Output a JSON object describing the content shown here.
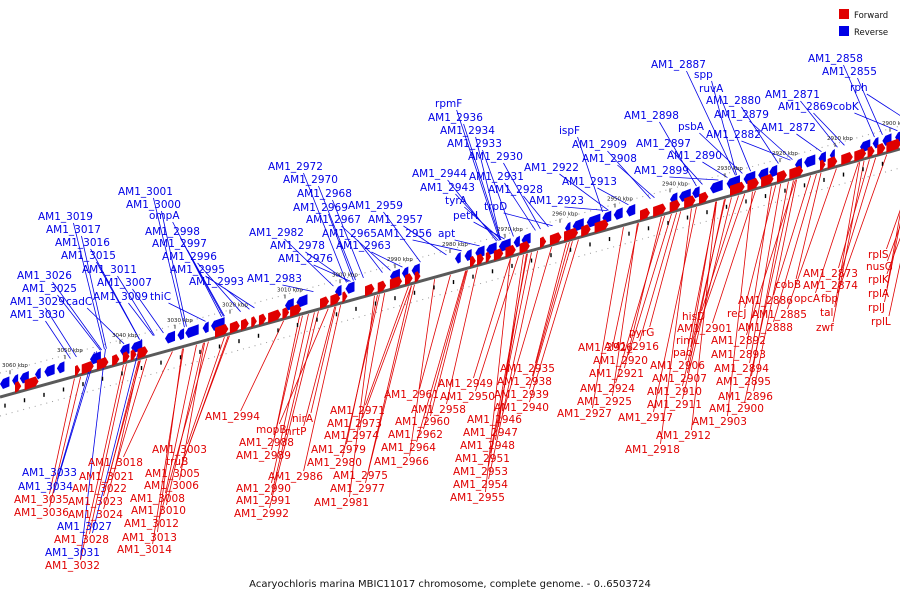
{
  "caption": "Acaryochloris marina MBIC11017 chromosome, complete genome. - 0..6503724",
  "legend": [
    {
      "label": "Forward",
      "color": "#e00000"
    },
    {
      "label": "Reverse",
      "color": "#0000e6"
    }
  ],
  "colors": {
    "forward": "#e00000",
    "reverse": "#0000e6",
    "backbone": "#5a5a5a",
    "ruler": "#888888"
  },
  "scale": {
    "start": 3060,
    "end": 2900,
    "step": 10,
    "unit": "kbp"
  },
  "reverse_labels": [
    "AM1_3030",
    "AM1_3029",
    "cadC",
    "AM1_3025",
    "AM1_3026",
    "AM1_3009",
    "AM1_3007",
    "AM1_3011",
    "AM1_3015",
    "AM1_3016",
    "AM1_3017",
    "AM1_3019",
    "thiC",
    "AM1_2998",
    "ompA",
    "AM1_3000",
    "AM1_3001",
    "AM1_2997",
    "AM1_2996",
    "AM1_2995",
    "AM1_2993",
    "AM1_2983",
    "AM1_2976",
    "AM1_2978",
    "AM1_2982",
    "AM1_2969",
    "AM1_2968",
    "AM1_2970",
    "AM1_2972",
    "AM1_2967",
    "AM1_2965",
    "AM1_2963",
    "AM1_2959",
    "AM1_2957",
    "AM1_2956",
    "apt",
    "petH",
    "tyrA",
    "AM1_2943",
    "AM1_2944",
    "AM1_2934",
    "AM1_2933",
    "AM1_2936",
    "rpmF",
    "trpD",
    "AM1_2928",
    "AM1_2931",
    "AM1_2930",
    "AM1_2923",
    "AM1_2922",
    "ispF",
    "AM1_2913",
    "AM1_2908",
    "AM1_2909",
    "AM1_2899",
    "AM1_2890",
    "AM1_2897",
    "AM1_2898",
    "psbA",
    "AM1_2887",
    "spp",
    "ruvA",
    "AM1_2880",
    "AM1_2879",
    "AM1_2882",
    "AM1_2872",
    "AM1_2869",
    "AM1_2871",
    "cobK",
    "rph",
    "AM1_2855",
    "AM1_2858",
    "AM1_3033",
    "AM1_3034",
    "AM1_3027",
    "AM1_3031"
  ],
  "forward_labels": [
    "AM1_3035",
    "AM1_3036",
    "AM1_3028",
    "AM1_3032",
    "AM1_3018",
    "AM1_3021",
    "AM1_3022",
    "AM1_3023",
    "AM1_3024",
    "AM1_3012",
    "AM1_3013",
    "AM1_3014",
    "AM1_3003",
    "truB",
    "AM1_3005",
    "AM1_3006",
    "AM1_3008",
    "AM1_3010",
    "AM1_2994",
    "mopB",
    "AM1_2988",
    "AM1_2989",
    "AM1_2990",
    "AM1_2991",
    "AM1_2992",
    "nirA",
    "nrtP",
    "AM1_2986",
    "AM1_2971",
    "AM1_2973",
    "AM1_2974",
    "AM1_2979",
    "AM1_2980",
    "AM1_2975",
    "AM1_2977",
    "AM1_2981",
    "AM1_2961",
    "AM1_2960",
    "AM1_2962",
    "AM1_2964",
    "AM1_2966",
    "AM1_2958",
    "AM1_2949",
    "AM1_2950",
    "AM1_2946",
    "AM1_2947",
    "AM1_2948",
    "AM1_2951",
    "AM1_2953",
    "AM1_2954",
    "AM1_2955",
    "AM1_2935",
    "AM1_2938",
    "AM1_2939",
    "AM1_2940",
    "AM1_2926",
    "AM1_2927",
    "AM1_2921",
    "AM1_2920",
    "AM1_2924",
    "AM1_2925",
    "pyrG",
    "AM1_2916",
    "AM1_2917",
    "rimL",
    "pao",
    "AM1_2906",
    "AM1_2907",
    "AM1_2910",
    "AM1_2911",
    "AM1_2912",
    "AM1_2918",
    "hisD",
    "AM1_2901",
    "AM1_2892",
    "AM1_2893",
    "AM1_2894",
    "AM1_2895",
    "AM1_2896",
    "AM1_2900",
    "AM1_2903",
    "recJ",
    "AM1_2886",
    "AM1_2888",
    "AM1_2885",
    "cobB",
    "AM1_2873",
    "AM1_2874",
    "opcA",
    "fbp",
    "tal",
    "zwf",
    "rplS",
    "nusG",
    "rplK",
    "rplA",
    "rplJ",
    "rplL"
  ]
}
